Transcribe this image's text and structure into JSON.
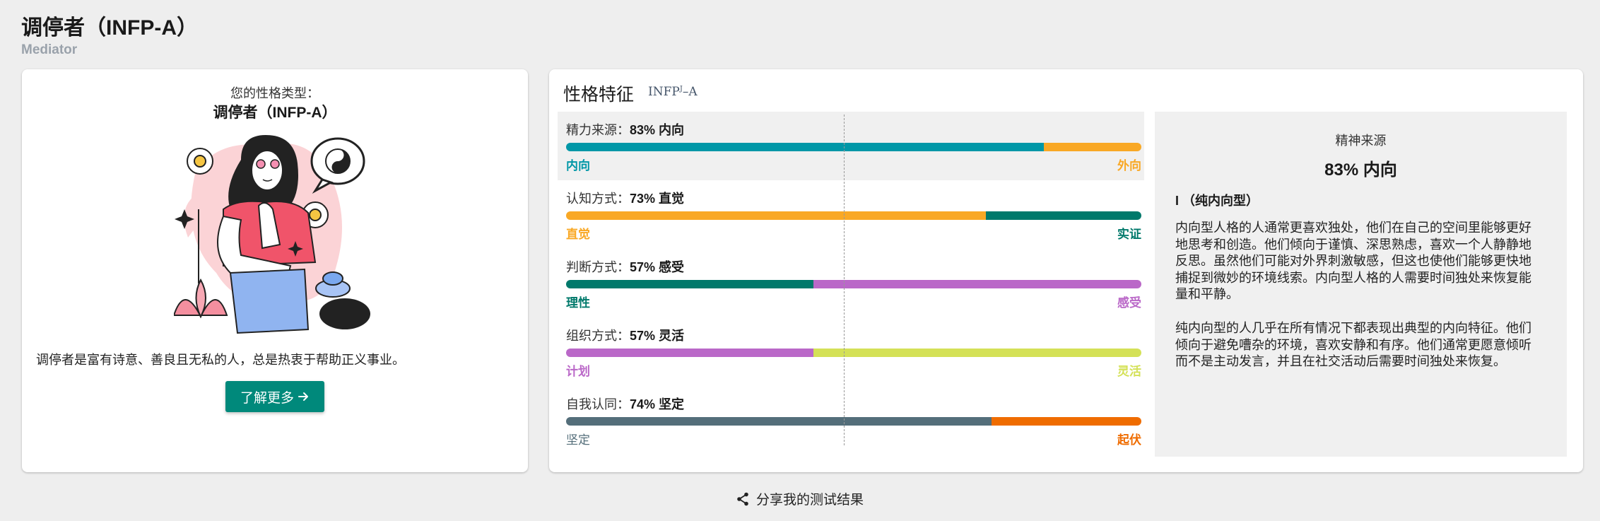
{
  "header": {
    "title": "调停者（INFP-A）",
    "subtitle": "Mediator"
  },
  "summary_card": {
    "type_label": "您的性格类型：",
    "type_name": "调停者（INFP-A）",
    "description": "调停者是富有诗意、善良且无私的人，总是热衷于帮助正义事业。",
    "learn_more_label": "了解更多",
    "learn_more_icon": "arrow-right-icon"
  },
  "traits": {
    "title": "性格特征",
    "code_main": "INFP",
    "code_sup": "J",
    "code_suffix": "–A",
    "items": [
      {
        "label": "精力来源：",
        "value": "83% 内向",
        "left_pole": "内向",
        "right_pole": "外向",
        "left_percent": 83,
        "left_color": "#0097a7",
        "right_color": "#f9a825",
        "active": true
      },
      {
        "label": "认知方式：",
        "value": "73% 直觉",
        "left_pole": "直觉",
        "right_pole": "实证",
        "left_percent": 73,
        "left_color": "#f9a825",
        "right_color": "#00796b",
        "active": false
      },
      {
        "label": "判断方式：",
        "value": "57% 感受",
        "left_pole": "理性",
        "right_pole": "感受",
        "left_percent": 43,
        "left_color": "#00796b",
        "right_color": "#ba68c8",
        "active": false
      },
      {
        "label": "组织方式：",
        "value": "57% 灵活",
        "left_pole": "计划",
        "right_pole": "灵活",
        "left_percent": 43,
        "left_color": "#ba68c8",
        "right_color": "#d4e157",
        "active": false
      },
      {
        "label": "自我认同：",
        "value": "74% 坚定",
        "left_pole": "坚定",
        "right_pole": "起伏",
        "left_percent": 74,
        "left_color": "#546e7a",
        "right_color": "#ef6c00",
        "active": false
      }
    ]
  },
  "detail": {
    "heading": "精神来源",
    "value": "83% 内向",
    "subtitle": "I （纯内向型）",
    "paragraph1": "内向型人格的人通常更喜欢独处，他们在自己的空间里能够更好地思考和创造。他们倾向于谨慎、深思熟虑，喜欢一个人静静地反思。虽然他们可能对外界刺激敏感，但这也使他们能够更快地捕捉到微妙的环境线索。内向型人格的人需要时间独处来恢复能量和平静。",
    "paragraph2": "纯内向型的人几乎在所有情况下都表现出典型的内向特征。他们倾向于避免嘈杂的环境，喜欢安静和有序。他们通常更愿意倾听而不是主动发言，并且在社交活动后需要时间独处来恢复。"
  },
  "share": {
    "label": "分享我的测试结果",
    "icon": "share-icon"
  }
}
